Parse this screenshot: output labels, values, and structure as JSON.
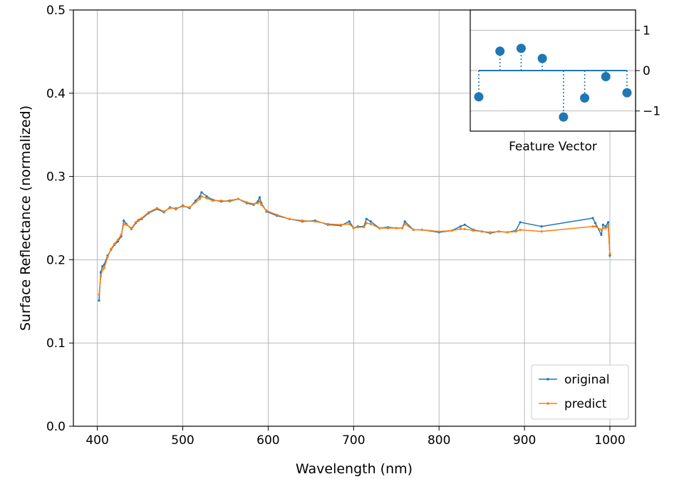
{
  "chart_data": [
    {
      "type": "line",
      "xlabel": "Wavelength (nm)",
      "ylabel": "Surface Reflectance (normalized)",
      "xlim": [
        372,
        1030
      ],
      "ylim": [
        0.0,
        0.5
      ],
      "x_ticks": [
        400,
        500,
        600,
        700,
        800,
        900,
        1000
      ],
      "y_ticks": [
        0.0,
        0.1,
        0.2,
        0.3,
        0.4,
        0.5
      ],
      "x_tick_labels": [
        "400",
        "500",
        "600",
        "700",
        "800",
        "900",
        "1000"
      ],
      "y_tick_labels": [
        "0.0",
        "0.1",
        "0.2",
        "0.3",
        "0.4",
        "0.5"
      ],
      "grid": true,
      "legend_position": "bottom-right",
      "series": [
        {
          "name": "original",
          "color": "#1f77b4",
          "x": [
            402,
            404,
            406,
            408,
            412,
            416,
            420,
            424,
            428,
            431,
            434,
            440,
            445,
            448,
            452,
            460,
            470,
            478,
            485,
            492,
            500,
            508,
            515,
            520,
            522,
            528,
            535,
            545,
            555,
            565,
            575,
            583,
            588,
            590,
            592,
            598,
            610,
            625,
            640,
            655,
            670,
            685,
            695,
            700,
            705,
            712,
            715,
            720,
            730,
            740,
            750,
            757,
            760,
            770,
            780,
            800,
            815,
            825,
            830,
            840,
            850,
            860,
            870,
            880,
            890,
            895,
            920,
            980,
            983,
            990,
            992,
            995,
            998,
            1000
          ],
          "y": [
            0.151,
            0.185,
            0.192,
            0.194,
            0.205,
            0.212,
            0.218,
            0.222,
            0.228,
            0.247,
            0.243,
            0.237,
            0.244,
            0.247,
            0.249,
            0.256,
            0.261,
            0.257,
            0.263,
            0.261,
            0.265,
            0.262,
            0.271,
            0.276,
            0.281,
            0.276,
            0.272,
            0.27,
            0.271,
            0.273,
            0.268,
            0.266,
            0.27,
            0.275,
            0.268,
            0.258,
            0.253,
            0.249,
            0.246,
            0.247,
            0.242,
            0.241,
            0.246,
            0.238,
            0.24,
            0.24,
            0.249,
            0.246,
            0.238,
            0.239,
            0.238,
            0.238,
            0.246,
            0.236,
            0.236,
            0.233,
            0.235,
            0.24,
            0.242,
            0.236,
            0.234,
            0.232,
            0.234,
            0.233,
            0.235,
            0.245,
            0.24,
            0.25,
            0.244,
            0.23,
            0.242,
            0.24,
            0.245,
            0.205
          ]
        },
        {
          "name": "predict",
          "color": "#ff7f0e",
          "x": [
            402,
            404,
            406,
            408,
            412,
            416,
            420,
            424,
            428,
            431,
            434,
            440,
            445,
            448,
            452,
            460,
            470,
            478,
            485,
            492,
            500,
            508,
            515,
            520,
            522,
            528,
            535,
            545,
            555,
            565,
            575,
            583,
            588,
            590,
            592,
            598,
            610,
            625,
            640,
            655,
            670,
            685,
            695,
            700,
            705,
            712,
            715,
            720,
            730,
            740,
            750,
            757,
            760,
            770,
            780,
            800,
            815,
            825,
            830,
            840,
            850,
            860,
            870,
            880,
            890,
            895,
            920,
            980,
            983,
            990,
            992,
            995,
            998,
            1000
          ],
          "y": [
            0.158,
            0.18,
            0.188,
            0.19,
            0.203,
            0.213,
            0.219,
            0.224,
            0.23,
            0.243,
            0.242,
            0.238,
            0.245,
            0.248,
            0.25,
            0.257,
            0.262,
            0.258,
            0.262,
            0.262,
            0.264,
            0.263,
            0.269,
            0.273,
            0.276,
            0.274,
            0.271,
            0.271,
            0.27,
            0.273,
            0.269,
            0.267,
            0.268,
            0.27,
            0.266,
            0.259,
            0.254,
            0.249,
            0.247,
            0.246,
            0.243,
            0.242,
            0.243,
            0.238,
            0.239,
            0.239,
            0.244,
            0.243,
            0.238,
            0.238,
            0.238,
            0.238,
            0.243,
            0.236,
            0.236,
            0.234,
            0.235,
            0.237,
            0.237,
            0.235,
            0.234,
            0.233,
            0.234,
            0.233,
            0.234,
            0.236,
            0.234,
            0.24,
            0.24,
            0.236,
            0.238,
            0.238,
            0.24,
            0.207
          ]
        }
      ]
    },
    {
      "type": "stem",
      "xlabel": "Feature Vector",
      "ylim": [
        -1.5,
        1.5
      ],
      "y_ticks": [
        -1,
        0,
        1
      ],
      "y_tick_labels": [
        "−1",
        "0",
        "1"
      ],
      "grid": true,
      "color": "#1f77b4",
      "values": [
        -0.65,
        0.48,
        0.55,
        0.3,
        -1.15,
        -0.68,
        -0.15,
        -0.55
      ]
    }
  ]
}
